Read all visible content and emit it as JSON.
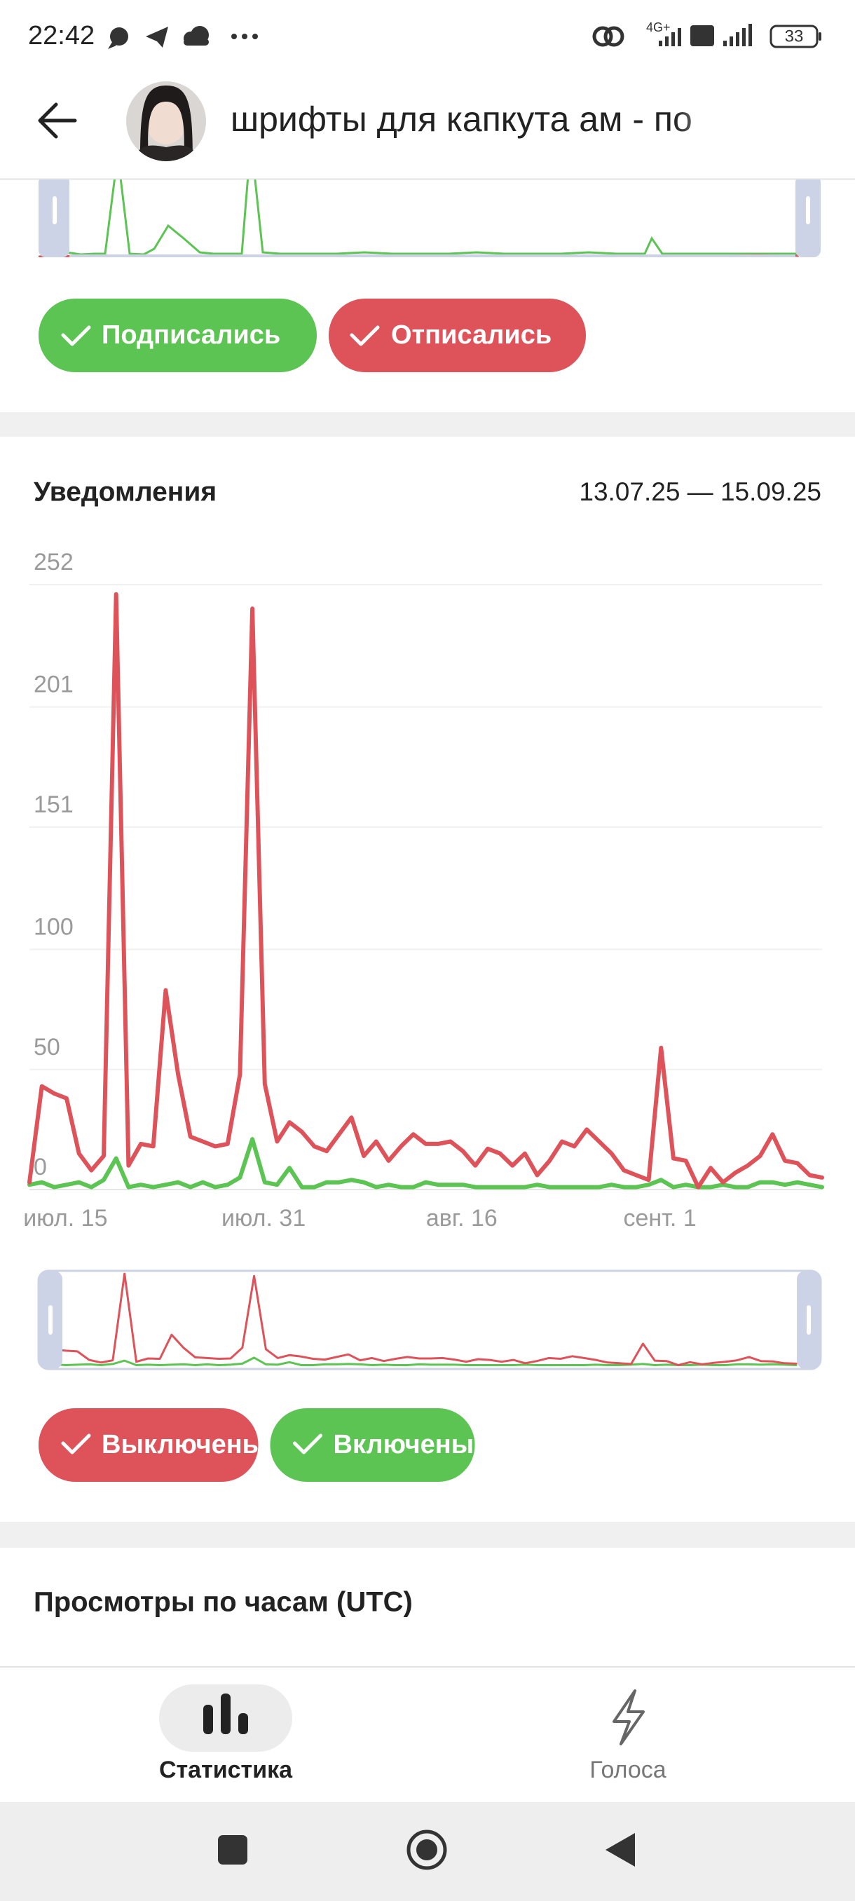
{
  "status_bar": {
    "time": "22:42",
    "network": "4G+",
    "battery": "33"
  },
  "header": {
    "title": "шрифты для капкута ам - по"
  },
  "followers_legend": {
    "subscribed": "Подписались",
    "unsubscribed": "Отписались"
  },
  "notifications": {
    "title": "Уведомления",
    "date_range": "13.07.25 — 15.09.25",
    "chart_data": {
      "type": "line",
      "categories": [
        null,
        null,
        "июл. 15",
        null,
        null,
        null,
        null,
        null,
        null,
        null,
        null,
        null,
        null,
        null,
        null,
        null,
        null,
        null,
        "июл. 31",
        null,
        null,
        null,
        null,
        null,
        null,
        null,
        null,
        null,
        null,
        null,
        null,
        null,
        null,
        null,
        "авг. 16",
        null,
        null,
        null,
        null,
        null,
        null,
        null,
        null,
        null,
        null,
        null,
        null,
        null,
        null,
        null,
        "сент. 1",
        null,
        null,
        null,
        null,
        null,
        null,
        null,
        null,
        null,
        null,
        null,
        null,
        null,
        null
      ],
      "series": [
        {
          "name": "Выключены",
          "color": "#de5359",
          "values": [
            3,
            43,
            40,
            38,
            15,
            8,
            14,
            248,
            10,
            19,
            18,
            83,
            48,
            22,
            20,
            18,
            19,
            48,
            242,
            44,
            20,
            28,
            24,
            18,
            16,
            23,
            30,
            14,
            20,
            12,
            18,
            23,
            19,
            19,
            20,
            16,
            10,
            17,
            15,
            10,
            15,
            6,
            12,
            20,
            18,
            25,
            20,
            15,
            8,
            6,
            4,
            59,
            13,
            12,
            1,
            9,
            3,
            7,
            10,
            14,
            23,
            12,
            11,
            6,
            5
          ]
        },
        {
          "name": "Включены",
          "color": "#5cc452",
          "values": [
            2,
            3,
            1,
            2,
            3,
            1,
            4,
            13,
            1,
            2,
            1,
            2,
            3,
            1,
            3,
            1,
            2,
            5,
            21,
            3,
            2,
            9,
            1,
            1,
            3,
            3,
            4,
            3,
            1,
            2,
            1,
            1,
            3,
            2,
            2,
            2,
            1,
            1,
            1,
            1,
            1,
            2,
            1,
            1,
            1,
            1,
            1,
            2,
            1,
            1,
            2,
            4,
            1,
            2,
            1,
            1,
            2,
            1,
            1,
            3,
            3,
            2,
            3,
            2,
            1
          ]
        }
      ],
      "ylim": [
        0,
        252
      ],
      "yticks": [
        0,
        50,
        100,
        151,
        201,
        252
      ],
      "grid": true
    }
  },
  "hourly_views": {
    "title": "Просмотры по часам (UTC)"
  },
  "bottom_nav": {
    "items": [
      {
        "label": "Статистика"
      },
      {
        "label": "Голоса"
      }
    ]
  }
}
